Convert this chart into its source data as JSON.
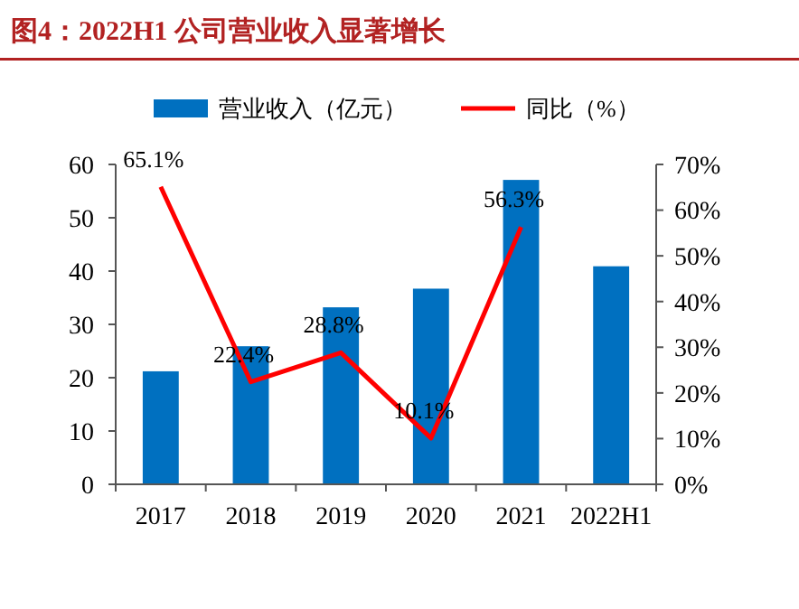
{
  "chart_data": {
    "type": "bar",
    "title": "图4：2022H1 公司营业收入显著增长",
    "categories": [
      "2017",
      "2018",
      "2019",
      "2020",
      "2021",
      "2022H1"
    ],
    "series": [
      {
        "name": "营业收入（亿元）",
        "color": "#0070c0",
        "values": [
          21.2,
          25.9,
          33.2,
          36.7,
          57.1,
          40.9
        ]
      },
      {
        "name": "同比（%）",
        "type": "line",
        "axis": "y2",
        "color": "#ff0000",
        "values": [
          65.1,
          22.4,
          28.8,
          10.1,
          56.3,
          null
        ],
        "value_labels": [
          "65.1%",
          "22.4%",
          "28.8%",
          "10.1%",
          "56.3%",
          null
        ]
      }
    ],
    "ylim": [
      0,
      60
    ],
    "yticks": [
      0,
      10,
      20,
      30,
      40,
      50,
      60
    ],
    "y2lim": [
      0,
      70
    ],
    "y2ticks": [
      {
        "value": 0,
        "label": "0%"
      },
      {
        "value": 10,
        "label": "10%"
      },
      {
        "value": 20,
        "label": "20%"
      },
      {
        "value": 30,
        "label": "30%"
      },
      {
        "value": 40,
        "label": "40%"
      },
      {
        "value": 50,
        "label": "50%"
      },
      {
        "value": 60,
        "label": "60%"
      },
      {
        "value": 70,
        "label": "70%"
      }
    ],
    "legend": "top",
    "grid": false,
    "marker": "none",
    "line_style": "solid"
  }
}
